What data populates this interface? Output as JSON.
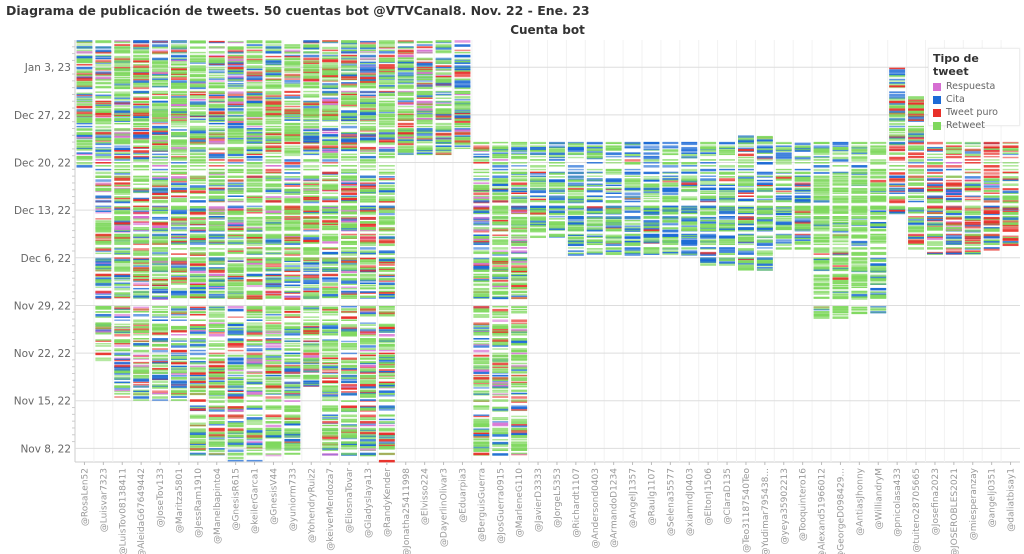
{
  "chart_data": {
    "type": "scatter",
    "title": "Diagrama de publicación de tweets. 50 cuentas bot @VTVCanal8. Nov. 22 - Ene. 23",
    "xlabel": "Cuenta bot",
    "ylabel": "",
    "yticks": [
      {
        "date": "2023-01-03",
        "label": "Jan 3, 23"
      },
      {
        "date": "2022-12-27",
        "label": "Dec 27, 22"
      },
      {
        "date": "2022-12-20",
        "label": "Dec 20, 22"
      },
      {
        "date": "2022-12-13",
        "label": "Dec 13, 22"
      },
      {
        "date": "2022-12-06",
        "label": "Dec 6, 22"
      },
      {
        "date": "2022-11-29",
        "label": "Nov 29, 22"
      },
      {
        "date": "2022-11-22",
        "label": "Nov 22, 22"
      },
      {
        "date": "2022-11-15",
        "label": "Nov 15, 22"
      },
      {
        "date": "2022-11-08",
        "label": "Nov 8, 22"
      }
    ],
    "ylim": [
      "2022-11-06",
      "2023-01-07"
    ],
    "legend": {
      "title": "Tipo de tweet",
      "position": "top-right",
      "items": [
        {
          "key": "resp",
          "label": "Respuesta",
          "color": "#d66ed2"
        },
        {
          "key": "cita",
          "label": "Cita",
          "color": "#1c6ad6"
        },
        {
          "key": "puro",
          "label": "Tweet puro",
          "color": "#e8302a"
        },
        {
          "key": "rt",
          "label": "Retweet",
          "color": "#7fd85e"
        }
      ]
    },
    "accounts": [
      {
        "name": "@RosaLen52",
        "first": "2022-12-19",
        "last": "2023-01-06",
        "mix": "A"
      },
      {
        "name": "@Luisvar7323",
        "first": "2022-11-21",
        "last": "2023-01-06",
        "mix": "A"
      },
      {
        "name": "@LuisTov08138411",
        "first": "2022-11-15",
        "last": "2023-01-06",
        "mix": "A"
      },
      {
        "name": "@AleidaG67649442",
        "first": "2022-11-15",
        "last": "2023-01-06",
        "mix": "A"
      },
      {
        "name": "@JoseTov133",
        "first": "2022-11-15",
        "last": "2023-01-06",
        "mix": "A"
      },
      {
        "name": "@Maritza5801",
        "first": "2022-11-15",
        "last": "2023-01-06",
        "mix": "A"
      },
      {
        "name": "@JessRam1910",
        "first": "2022-11-07",
        "last": "2023-01-06",
        "mix": "A"
      },
      {
        "name": "@Manelbapinto4",
        "first": "2022-11-07",
        "last": "2023-01-06",
        "mix": "A"
      },
      {
        "name": "@GnesisR615",
        "first": "2022-11-06",
        "last": "2023-01-06",
        "mix": "A"
      },
      {
        "name": "@keilerGarca1",
        "first": "2022-11-06",
        "last": "2023-01-06",
        "mix": "A"
      },
      {
        "name": "@GnesisV44",
        "first": "2022-11-07",
        "last": "2023-01-06",
        "mix": "A"
      },
      {
        "name": "@yuniorm733",
        "first": "2022-11-07",
        "last": "2023-01-06",
        "mix": "A"
      },
      {
        "name": "@YohendryRuiz2",
        "first": "2022-11-17",
        "last": "2023-01-06",
        "mix": "A"
      },
      {
        "name": "@keiverMendoza7",
        "first": "2022-11-07",
        "last": "2023-01-06",
        "mix": "A"
      },
      {
        "name": "@EliosnaTovar",
        "first": "2022-11-07",
        "last": "2023-01-06",
        "mix": "A"
      },
      {
        "name": "@Gladyslaya13",
        "first": "2022-11-07",
        "last": "2023-01-06",
        "mix": "A"
      },
      {
        "name": "@RandyKender",
        "first": "2022-11-06",
        "last": "2023-01-06",
        "mix": "A"
      },
      {
        "name": "@Jonatha25411998",
        "first": "2022-12-21",
        "last": "2023-01-06",
        "mix": "A"
      },
      {
        "name": "@Elvisso224",
        "first": "2022-12-21",
        "last": "2023-01-06",
        "mix": "A"
      },
      {
        "name": "@DayerlinOlivar3",
        "first": "2022-12-21",
        "last": "2023-01-06",
        "mix": "A"
      },
      {
        "name": "@Eduarpia3",
        "first": "2022-12-22",
        "last": "2023-01-06",
        "mix": "A"
      },
      {
        "name": "@BerguisGuerra",
        "first": "2022-11-07",
        "last": "2022-12-22",
        "mix": "A"
      },
      {
        "name": "@JosGuerra0915",
        "first": "2022-11-07",
        "last": "2022-12-22",
        "mix": "A"
      },
      {
        "name": "@MarleneG110",
        "first": "2022-11-07",
        "last": "2022-12-22",
        "mix": "A"
      },
      {
        "name": "@JavierD3333",
        "first": "2022-12-09",
        "last": "2022-12-22",
        "mix": "B"
      },
      {
        "name": "@JorgeL5353",
        "first": "2022-12-09",
        "last": "2022-12-22",
        "mix": "B"
      },
      {
        "name": "@Richardt1107",
        "first": "2022-12-06",
        "last": "2022-12-22",
        "mix": "B"
      },
      {
        "name": "@Andersond0403",
        "first": "2022-12-06",
        "last": "2022-12-22",
        "mix": "B"
      },
      {
        "name": "@ArmandoD1234",
        "first": "2022-12-06",
        "last": "2022-12-22",
        "mix": "B"
      },
      {
        "name": "@AngelJ1357",
        "first": "2022-12-06",
        "last": "2022-12-22",
        "mix": "B"
      },
      {
        "name": "@Raulg1107",
        "first": "2022-12-06",
        "last": "2022-12-22",
        "mix": "B"
      },
      {
        "name": "@Selena35577",
        "first": "2022-12-06",
        "last": "2022-12-22",
        "mix": "B"
      },
      {
        "name": "@xiamndJ0403",
        "first": "2022-12-06",
        "last": "2022-12-22",
        "mix": "B"
      },
      {
        "name": "@EltonJ1506",
        "first": "2022-12-05",
        "last": "2022-12-22",
        "mix": "B"
      },
      {
        "name": "@ClaraD135",
        "first": "2022-12-05",
        "last": "2022-12-22",
        "mix": "B"
      },
      {
        "name": "@Teo31187540Teo",
        "first": "2022-12-04",
        "last": "2022-12-23",
        "mix": "B"
      },
      {
        "name": "@Yudimar795438...",
        "first": "2022-12-04",
        "last": "2022-12-23",
        "mix": "B"
      },
      {
        "name": "@yeya35902213",
        "first": "2022-12-07",
        "last": "2022-12-22",
        "mix": "B"
      },
      {
        "name": "@Tooquintero16",
        "first": "2022-12-07",
        "last": "2022-12-22",
        "mix": "B"
      },
      {
        "name": "@Alexand51966012",
        "first": "2022-11-27",
        "last": "2022-12-22",
        "mix": "C"
      },
      {
        "name": "@GeorgeD098429...",
        "first": "2022-11-27",
        "last": "2022-12-22",
        "mix": "C"
      },
      {
        "name": "@AntiasJhonny",
        "first": "2022-11-27",
        "last": "2022-12-22",
        "mix": "C"
      },
      {
        "name": "@WilliandryM",
        "first": "2022-11-27",
        "last": "2022-12-22",
        "mix": "C"
      },
      {
        "name": "@pnicolasa433",
        "first": "2022-12-12",
        "last": "2023-01-02",
        "mix": "D"
      },
      {
        "name": "@tuitero28705665",
        "first": "2022-12-07",
        "last": "2022-12-29",
        "mix": "D"
      },
      {
        "name": "@Josefina2023",
        "first": "2022-12-06",
        "last": "2022-12-22",
        "mix": "D"
      },
      {
        "name": "@JOSEROBLES2021",
        "first": "2022-12-06",
        "last": "2022-12-22",
        "mix": "D"
      },
      {
        "name": "@miesperanzay",
        "first": "2022-12-06",
        "last": "2022-12-22",
        "mix": "D"
      },
      {
        "name": "@angelj0351",
        "first": "2022-12-07",
        "last": "2022-12-22",
        "mix": "D"
      },
      {
        "name": "@daliatbisay1",
        "first": "2022-12-07",
        "last": "2022-12-22",
        "mix": "D"
      }
    ],
    "type_mix": {
      "A": {
        "rt": 0.6,
        "cita": 0.2,
        "puro": 0.15,
        "resp": 0.05
      },
      "B": {
        "rt": 0.55,
        "cita": 0.4,
        "puro": 0.05,
        "resp": 0.0
      },
      "C": {
        "rt": 0.88,
        "cita": 0.1,
        "puro": 0.02,
        "resp": 0.0
      },
      "D": {
        "rt": 0.4,
        "cita": 0.25,
        "puro": 0.33,
        "resp": 0.02
      }
    }
  }
}
